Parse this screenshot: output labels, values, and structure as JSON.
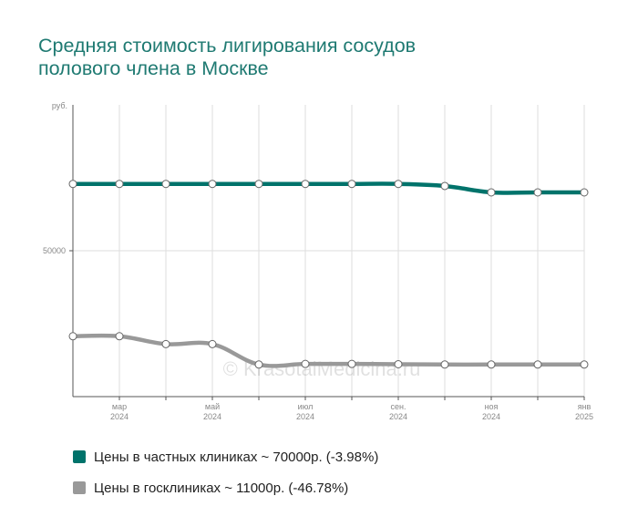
{
  "chart_data": {
    "type": "line",
    "title": "Средняя стоимость лигирования сосудов полового члена в Москве",
    "title_lines": [
      "Средняя стоимость лигирования сосудов",
      "полового члена в Москве"
    ],
    "y_unit": "руб.",
    "y_ticks": [
      50000
    ],
    "ylim": [
      0,
      100000
    ],
    "grid": true,
    "legend_position": "bottom-left",
    "x": [
      "2024-02",
      "2024-03",
      "2024-04",
      "2024-05",
      "2024-06",
      "2024-07",
      "2024-08",
      "2024-09",
      "2024-10",
      "2024-11",
      "2024-12",
      "2025-01"
    ],
    "x_tick_labels": [
      {
        "x": "2024-03",
        "month": "мар",
        "year": "2024"
      },
      {
        "x": "2024-05",
        "month": "май",
        "year": "2024"
      },
      {
        "x": "2024-07",
        "month": "июл",
        "year": "2024"
      },
      {
        "x": "2024-09",
        "month": "сен.",
        "year": "2024"
      },
      {
        "x": "2024-11",
        "month": "ноя",
        "year": "2024"
      },
      {
        "x": "2025-01",
        "month": "янв",
        "year": "2025"
      }
    ],
    "series": [
      {
        "name": "Цены в частных клиниках ~ 70000р. (-3.98%)",
        "color": "#00736b",
        "values": [
          72900,
          72900,
          72900,
          72900,
          72900,
          72900,
          72900,
          72900,
          72200,
          70000,
          70000,
          70000
        ]
      },
      {
        "name": "Цены в госклиниках ~ 11000р. (-46.78%)",
        "color": "#999999",
        "values": [
          20700,
          20700,
          18000,
          18000,
          11000,
          11200,
          11200,
          11100,
          11000,
          11000,
          11000,
          11000
        ]
      }
    ],
    "watermark": "© KrasotaiMedicina.ru"
  }
}
